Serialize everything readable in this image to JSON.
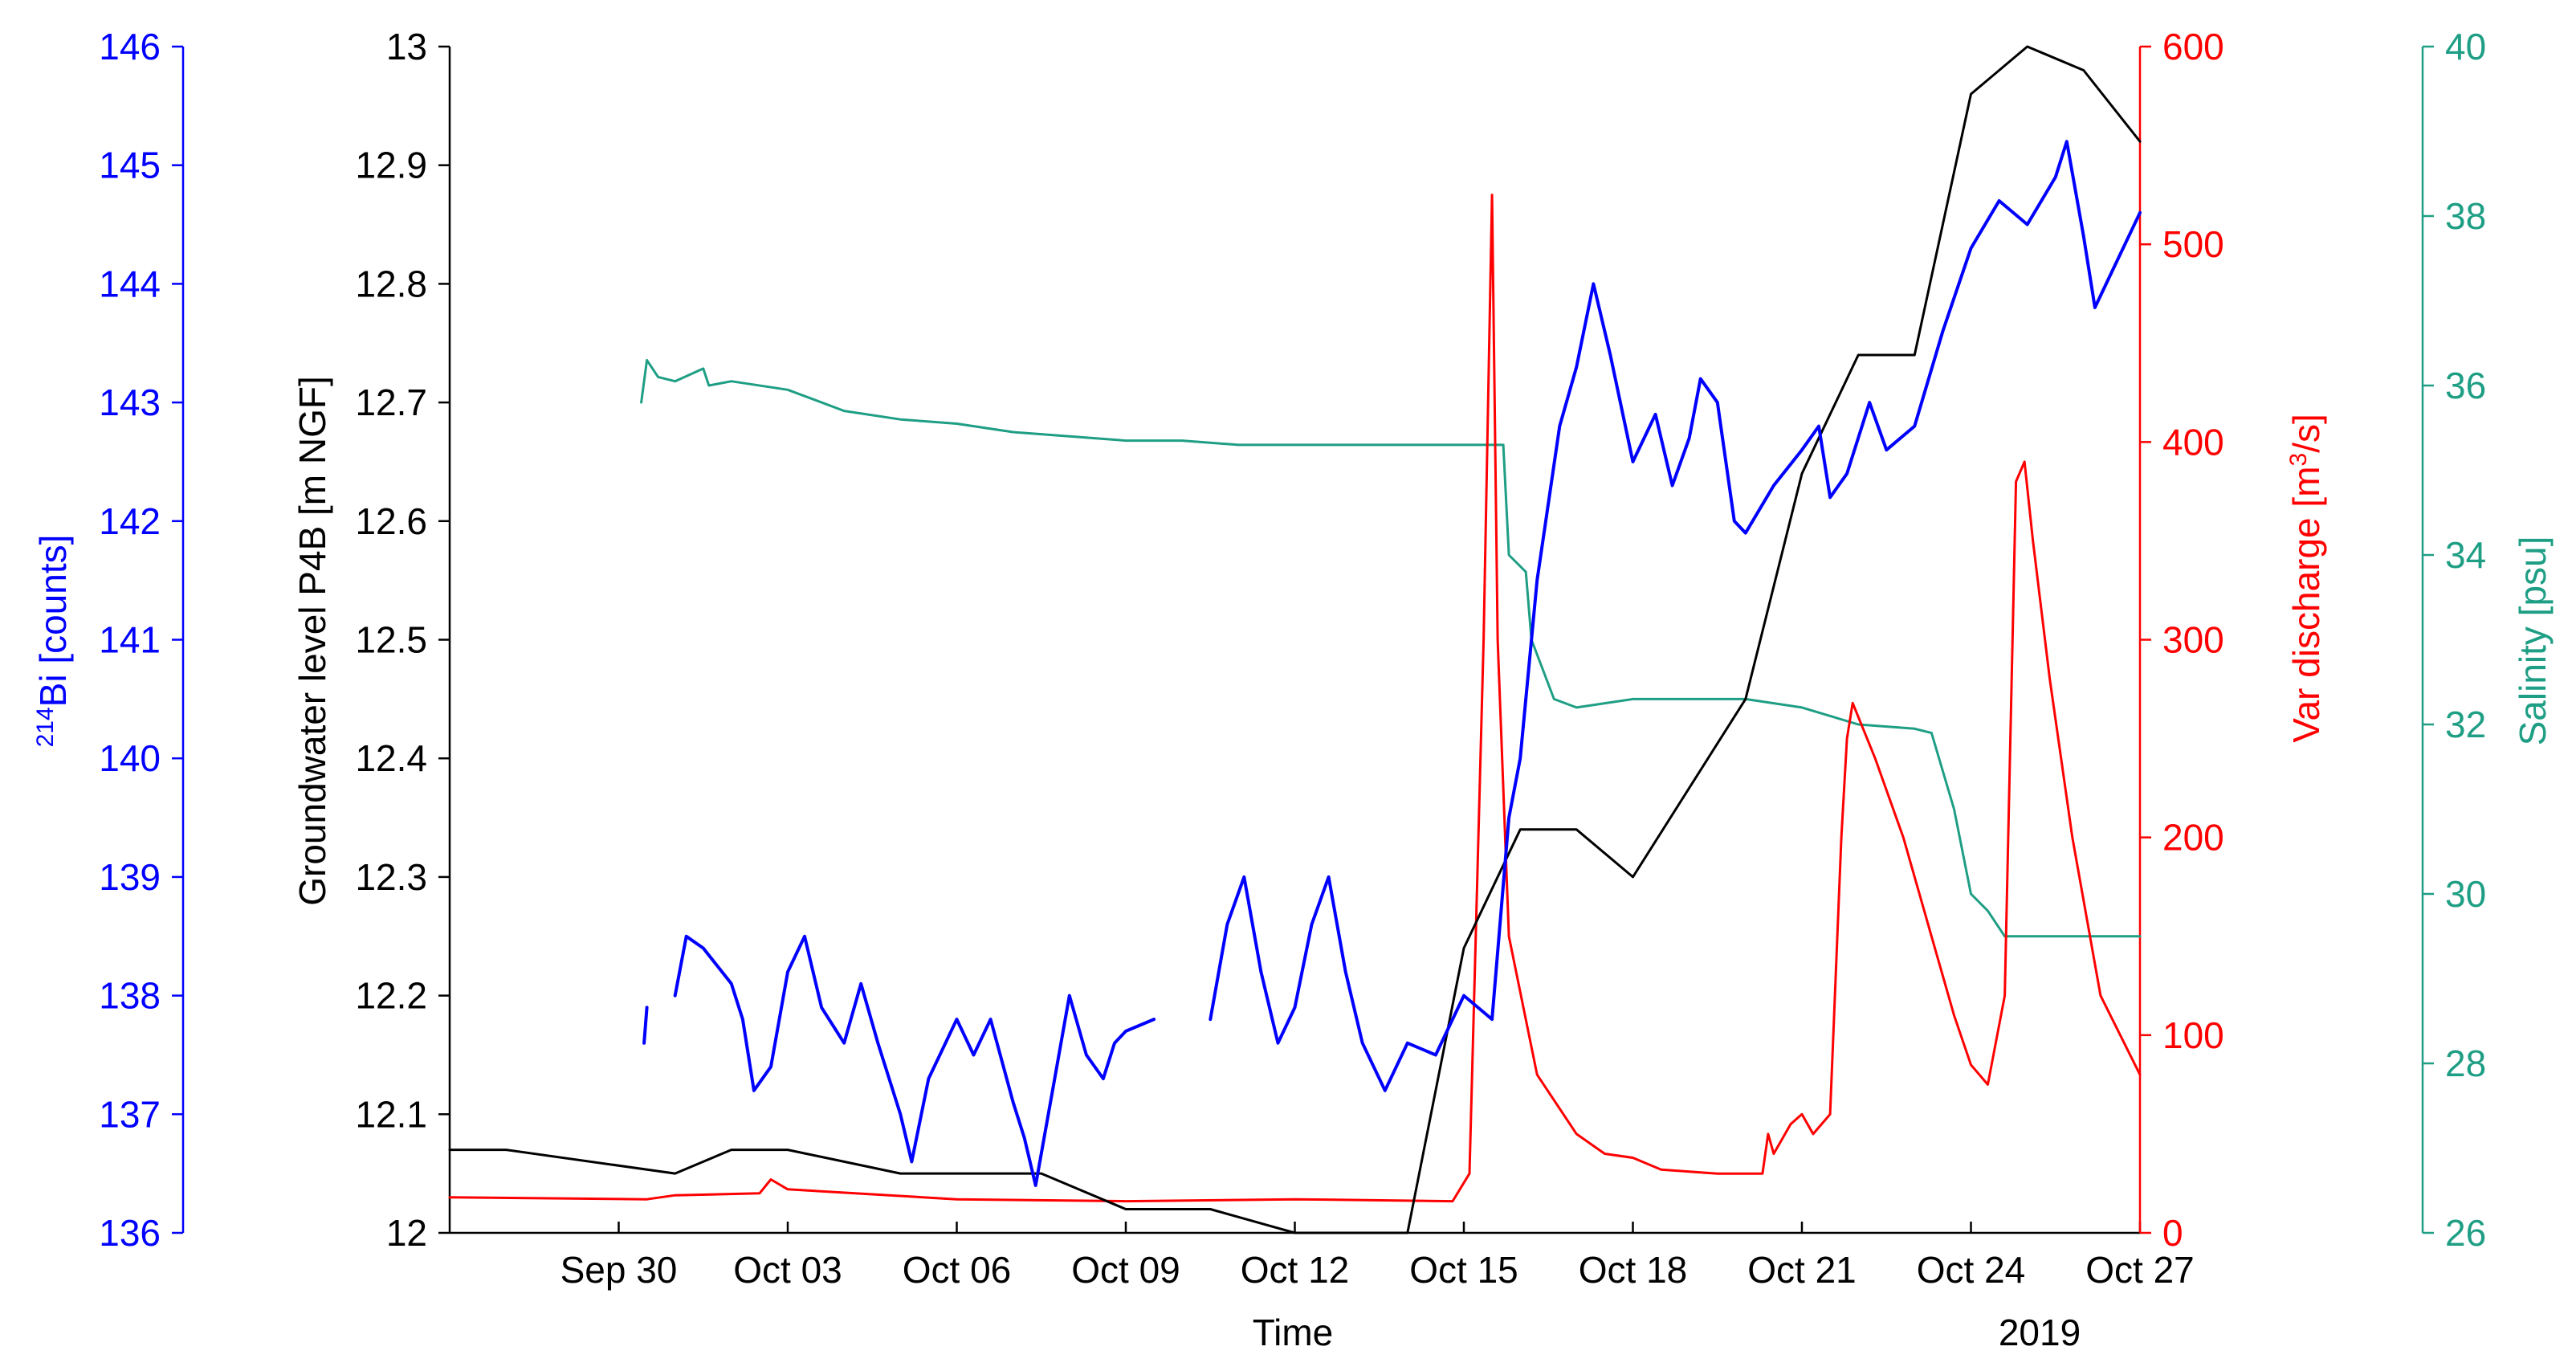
{
  "chart_data": {
    "type": "line",
    "xlabel": "Time",
    "x_year_label": "2019",
    "x_range": [
      "2019-09-27",
      "2019-10-27"
    ],
    "x_ticks": [
      {
        "date": "2019-09-30",
        "label": "Sep 30"
      },
      {
        "date": "2019-10-03",
        "label": "Oct 03"
      },
      {
        "date": "2019-10-06",
        "label": "Oct 06"
      },
      {
        "date": "2019-10-09",
        "label": "Oct 09"
      },
      {
        "date": "2019-10-12",
        "label": "Oct 12"
      },
      {
        "date": "2019-10-15",
        "label": "Oct 15"
      },
      {
        "date": "2019-10-18",
        "label": "Oct 18"
      },
      {
        "date": "2019-10-21",
        "label": "Oct 21"
      },
      {
        "date": "2019-10-24",
        "label": "Oct 24"
      },
      {
        "date": "2019-10-27",
        "label": "Oct 27"
      }
    ],
    "axes": {
      "bi": {
        "label_sup": "214",
        "label_main": "Bi [counts]",
        "ylim": [
          136,
          146
        ],
        "ticks": [
          "136",
          "137",
          "138",
          "139",
          "140",
          "141",
          "142",
          "143",
          "144",
          "145",
          "146"
        ],
        "color": "#0000ff"
      },
      "gw": {
        "label": "Groundwater level P4B [m NGF]",
        "ylim": [
          12,
          13
        ],
        "ticks": [
          "12",
          "12.1",
          "12.2",
          "12.3",
          "12.4",
          "12.5",
          "12.6",
          "12.7",
          "12.8",
          "12.9",
          "13"
        ],
        "color": "#000000"
      },
      "discharge": {
        "label": "Var discharge [m",
        "label_sup": "3",
        "label_end": "/s]",
        "ylim": [
          0,
          600
        ],
        "ticks": [
          "0",
          "100",
          "200",
          "300",
          "400",
          "500",
          "600"
        ],
        "color": "#ff0000"
      },
      "salinity": {
        "label": "Salinity [psu]",
        "ylim": [
          26,
          40
        ],
        "ticks": [
          "26",
          "28",
          "30",
          "32",
          "34",
          "36",
          "38",
          "40"
        ],
        "color": "#1e9e84"
      }
    },
    "series": [
      {
        "axis": "gw",
        "color": "#000000",
        "points": [
          [
            "2019-09-27",
            12.07
          ],
          [
            "2019-09-28",
            12.07
          ],
          [
            "2019-10-01",
            12.05
          ],
          [
            "2019-10-02",
            12.07
          ],
          [
            "2019-10-03",
            12.07
          ],
          [
            "2019-10-05",
            12.05
          ],
          [
            "2019-10-07.5",
            12.05
          ],
          [
            "2019-10-08",
            12.04
          ],
          [
            "2019-10-09",
            12.02
          ],
          [
            "2019-10-10.5",
            12.02
          ],
          [
            "2019-10-12",
            12.0
          ],
          [
            "2019-10-14",
            12.0
          ],
          [
            "2019-10-15",
            12.24
          ],
          [
            "2019-10-16",
            12.34
          ],
          [
            "2019-10-17",
            12.34
          ],
          [
            "2019-10-18",
            12.3
          ],
          [
            "2019-10-20",
            12.45
          ],
          [
            "2019-10-21",
            12.64
          ],
          [
            "2019-10-22",
            12.74
          ],
          [
            "2019-10-23",
            12.74
          ],
          [
            "2019-10-24",
            12.96
          ],
          [
            "2019-10-25",
            13.0
          ],
          [
            "2019-10-26",
            12.98
          ],
          [
            "2019-10-27",
            12.92
          ]
        ]
      },
      {
        "axis": "discharge",
        "color": "#ff0000",
        "points": [
          [
            "2019-09-27",
            18
          ],
          [
            "2019-09-30.5",
            17
          ],
          [
            "2019-10-01",
            19
          ],
          [
            "2019-10-02.5",
            20
          ],
          [
            "2019-10-02.7",
            27
          ],
          [
            "2019-10-03",
            22
          ],
          [
            "2019-10-06",
            17
          ],
          [
            "2019-10-09",
            16
          ],
          [
            "2019-10-12",
            17
          ],
          [
            "2019-10-14.8",
            16
          ],
          [
            "2019-10-15.1",
            30
          ],
          [
            "2019-10-15.35",
            300
          ],
          [
            "2019-10-15.5",
            525
          ],
          [
            "2019-10-15.6",
            300
          ],
          [
            "2019-10-15.8",
            150
          ],
          [
            "2019-10-16.3",
            80
          ],
          [
            "2019-10-17",
            50
          ],
          [
            "2019-10-17.5",
            40
          ],
          [
            "2019-10-18",
            38
          ],
          [
            "2019-10-18.5",
            32
          ],
          [
            "2019-10-19.5",
            30
          ],
          [
            "2019-10-20.3",
            30
          ],
          [
            "2019-10-20.4",
            50
          ],
          [
            "2019-10-20.5",
            40
          ],
          [
            "2019-10-20.8",
            55
          ],
          [
            "2019-10-21",
            60
          ],
          [
            "2019-10-21.2",
            50
          ],
          [
            "2019-10-21.5",
            60
          ],
          [
            "2019-10-21.7",
            200
          ],
          [
            "2019-10-21.8",
            250
          ],
          [
            "2019-10-21.9",
            268
          ],
          [
            "2019-10-22.3",
            240
          ],
          [
            "2019-10-22.8",
            200
          ],
          [
            "2019-10-23.3",
            150
          ],
          [
            "2019-10-23.7",
            110
          ],
          [
            "2019-10-24",
            85
          ],
          [
            "2019-10-24.3",
            75
          ],
          [
            "2019-10-24.6",
            120
          ],
          [
            "2019-10-24.8",
            380
          ],
          [
            "2019-10-24.95",
            390
          ],
          [
            "2019-10-25.1",
            350
          ],
          [
            "2019-10-25.4",
            280
          ],
          [
            "2019-10-25.8",
            200
          ],
          [
            "2019-10-26.3",
            120
          ],
          [
            "2019-10-27",
            80
          ]
        ]
      },
      {
        "axis": "salinity",
        "color": "#1e9e84",
        "points": [
          [
            "2019-09-30.4",
            35.8
          ],
          [
            "2019-09-30.5",
            36.3
          ],
          [
            "2019-09-30.7",
            36.1
          ],
          [
            "2019-10-01",
            36.05
          ],
          [
            "2019-10-01.5",
            36.2
          ],
          [
            "2019-10-01.6",
            36.0
          ],
          [
            "2019-10-02",
            36.05
          ],
          [
            "2019-10-03",
            35.95
          ],
          [
            "2019-10-04",
            35.7
          ],
          [
            "2019-10-05",
            35.6
          ],
          [
            "2019-10-06",
            35.55
          ],
          [
            "2019-10-07",
            35.45
          ],
          [
            "2019-10-08",
            35.4
          ],
          [
            "2019-10-09",
            35.35
          ],
          [
            "2019-10-10",
            35.35
          ],
          [
            "2019-10-11",
            35.3
          ],
          [
            "2019-10-12",
            35.3
          ],
          [
            "2019-10-13",
            35.3
          ],
          [
            "2019-10-14",
            35.3
          ],
          [
            "2019-10-15",
            35.3
          ],
          [
            "2019-10-15.7",
            35.3
          ],
          [
            "2019-10-15.8",
            34.0
          ],
          [
            "2019-10-16.1",
            33.8
          ],
          [
            "2019-10-16.2",
            33.0
          ],
          [
            "2019-10-16.6",
            32.3
          ],
          [
            "2019-10-17",
            32.2
          ],
          [
            "2019-10-18",
            32.3
          ],
          [
            "2019-10-19",
            32.3
          ],
          [
            "2019-10-20",
            32.3
          ],
          [
            "2019-10-21",
            32.2
          ],
          [
            "2019-10-22",
            32.0
          ],
          [
            "2019-10-23",
            31.95
          ],
          [
            "2019-10-23.3",
            31.9
          ],
          [
            "2019-10-23.7",
            31.0
          ],
          [
            "2019-10-24",
            30.0
          ],
          [
            "2019-10-24.3",
            29.8
          ],
          [
            "2019-10-24.6",
            29.5
          ],
          [
            "2019-10-25",
            29.5
          ],
          [
            "2019-10-26",
            29.5
          ],
          [
            "2019-10-27",
            29.5
          ]
        ]
      },
      {
        "axis": "bi",
        "color": "#0000ff",
        "segments": [
          [
            [
              "2019-09-30.45",
              137.6
            ],
            [
              "2019-09-30.5",
              137.9
            ]
          ],
          [
            [
              "2019-10-01",
              138.0
            ],
            [
              "2019-10-01.2",
              138.5
            ],
            [
              "2019-10-01.5",
              138.4
            ],
            [
              "2019-10-02",
              138.1
            ],
            [
              "2019-10-02.2",
              137.8
            ],
            [
              "2019-10-02.4",
              137.2
            ],
            [
              "2019-10-02.7",
              137.4
            ],
            [
              "2019-10-03",
              138.2
            ],
            [
              "2019-10-03.3",
              138.5
            ],
            [
              "2019-10-03.6",
              137.9
            ],
            [
              "2019-10-04",
              137.6
            ],
            [
              "2019-10-04.3",
              138.1
            ],
            [
              "2019-10-04.6",
              137.6
            ],
            [
              "2019-10-05",
              137.0
            ],
            [
              "2019-10-05.2",
              136.6
            ],
            [
              "2019-10-05.5",
              137.3
            ],
            [
              "2019-10-06",
              137.8
            ],
            [
              "2019-10-06.3",
              137.5
            ],
            [
              "2019-10-06.6",
              137.8
            ],
            [
              "2019-10-07",
              137.1
            ],
            [
              "2019-10-07.2",
              136.8
            ],
            [
              "2019-10-07.4",
              136.4
            ],
            [
              "2019-10-07.7",
              137.2
            ],
            [
              "2019-10-08",
              138.0
            ],
            [
              "2019-10-08.3",
              137.5
            ],
            [
              "2019-10-08.6",
              137.3
            ],
            [
              "2019-10-08.8",
              137.6
            ],
            [
              "2019-10-09",
              137.7
            ],
            [
              "2019-10-09.5",
              137.8
            ]
          ],
          [
            [
              "2019-10-10.5",
              137.8
            ],
            [
              "2019-10-10.8",
              138.6
            ],
            [
              "2019-10-11.1",
              139.0
            ],
            [
              "2019-10-11.4",
              138.2
            ],
            [
              "2019-10-11.7",
              137.6
            ],
            [
              "2019-10-12",
              137.9
            ],
            [
              "2019-10-12.3",
              138.6
            ],
            [
              "2019-10-12.6",
              139.0
            ],
            [
              "2019-10-12.9",
              138.2
            ],
            [
              "2019-10-13.2",
              137.6
            ],
            [
              "2019-10-13.6",
              137.2
            ],
            [
              "2019-10-14",
              137.6
            ],
            [
              "2019-10-14.5",
              137.5
            ],
            [
              "2019-10-15",
              138.0
            ],
            [
              "2019-10-15.5",
              137.8
            ],
            [
              "2019-10-15.8",
              139.5
            ],
            [
              "2019-10-16",
              140.0
            ],
            [
              "2019-10-16.3",
              141.5
            ],
            [
              "2019-10-16.7",
              142.8
            ],
            [
              "2019-10-17",
              143.3
            ],
            [
              "2019-10-17.3",
              144.0
            ],
            [
              "2019-10-17.6",
              143.4
            ],
            [
              "2019-10-18",
              142.5
            ],
            [
              "2019-10-18.4",
              142.9
            ],
            [
              "2019-10-18.7",
              142.3
            ],
            [
              "2019-10-19",
              142.7
            ],
            [
              "2019-10-19.2",
              143.2
            ],
            [
              "2019-10-19.5",
              143.0
            ],
            [
              "2019-10-19.8",
              142.0
            ],
            [
              "2019-10-20",
              141.9
            ],
            [
              "2019-10-20.5",
              142.3
            ],
            [
              "2019-10-21",
              142.6
            ],
            [
              "2019-10-21.3",
              142.8
            ],
            [
              "2019-10-21.5",
              142.2
            ],
            [
              "2019-10-21.8",
              142.4
            ],
            [
              "2019-10-22.2",
              143.0
            ],
            [
              "2019-10-22.5",
              142.6
            ],
            [
              "2019-10-23",
              142.8
            ],
            [
              "2019-10-23.5",
              143.6
            ],
            [
              "2019-10-24",
              144.3
            ],
            [
              "2019-10-24.5",
              144.7
            ],
            [
              "2019-10-25",
              144.5
            ],
            [
              "2019-10-25.5",
              144.9
            ],
            [
              "2019-10-25.7",
              145.2
            ],
            [
              "2019-10-26",
              144.4
            ],
            [
              "2019-10-26.2",
              143.8
            ],
            [
              "2019-10-26.5",
              144.1
            ],
            [
              "2019-10-27",
              144.6
            ]
          ]
        ]
      }
    ]
  }
}
